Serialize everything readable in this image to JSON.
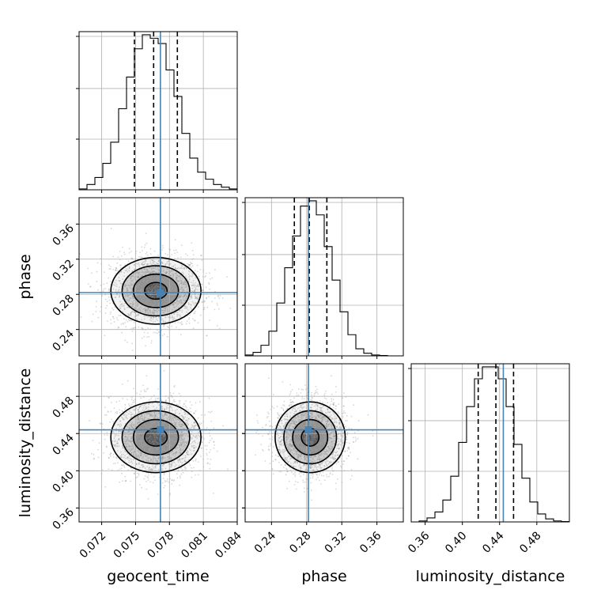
{
  "chart_data": {
    "type": "corner",
    "parameters": [
      "geocent_time",
      "phase",
      "luminosity_distance"
    ],
    "truths": {
      "geocent_time": 0.0772,
      "phase": 0.282,
      "luminosity_distance": 0.444
    },
    "quantiles": {
      "geocent_time": [
        0.0749,
        0.0766,
        0.0787
      ],
      "phase": [
        0.266,
        0.283,
        0.303
      ],
      "luminosity_distance": [
        0.417,
        0.436,
        0.455
      ]
    },
    "ranges": {
      "geocent_time": [
        0.07,
        0.084
      ],
      "phase": [
        0.21,
        0.39
      ],
      "luminosity_distance": [
        0.345,
        0.515
      ]
    },
    "ticks": {
      "geocent_time": [
        "0.072",
        "0.075",
        "0.078",
        "0.081",
        "0.084"
      ],
      "phase": [
        "0.24",
        "0.28",
        "0.32",
        "0.36"
      ],
      "luminosity_distance": [
        "0.36",
        "0.40",
        "0.44",
        "0.48"
      ]
    },
    "histograms": {
      "geocent_time": {
        "edges": [
          0.07,
          0.0707,
          0.0714,
          0.0721,
          0.0728,
          0.0735,
          0.0742,
          0.0749,
          0.0756,
          0.0763,
          0.077,
          0.0777,
          0.0784,
          0.0791,
          0.0798,
          0.0805,
          0.0812,
          0.0819,
          0.0826,
          0.0833,
          0.084
        ],
        "counts": [
          0.5,
          3,
          7,
          15,
          27,
          46,
          64,
          80,
          88,
          86,
          83,
          68,
          53,
          32,
          18,
          10,
          6,
          3,
          1.5,
          0.5
        ]
      },
      "phase": {
        "edges": [
          0.21,
          0.219,
          0.228,
          0.237,
          0.246,
          0.255,
          0.264,
          0.273,
          0.282,
          0.291,
          0.3,
          0.309,
          0.318,
          0.327,
          0.336,
          0.345,
          0.354,
          0.363,
          0.372,
          0.381,
          0.39
        ],
        "counts": [
          0.5,
          2,
          6,
          14,
          30,
          50,
          68,
          85,
          88,
          80,
          62,
          43,
          25,
          12,
          4,
          1.5,
          0.5,
          0.2,
          0,
          0
        ]
      },
      "luminosity_distance": {
        "edges": [
          0.345,
          0.3535,
          0.362,
          0.3705,
          0.379,
          0.3875,
          0.396,
          0.4045,
          0.413,
          0.4215,
          0.43,
          0.4385,
          0.447,
          0.4555,
          0.464,
          0.4725,
          0.481,
          0.4895,
          0.498,
          0.5065,
          0.515
        ],
        "counts": [
          0,
          0.5,
          2,
          5,
          11,
          23,
          40,
          58,
          72,
          78,
          78,
          72,
          58,
          39,
          22,
          10,
          4,
          1.5,
          0.5,
          0.2
        ]
      }
    },
    "grid": true
  }
}
